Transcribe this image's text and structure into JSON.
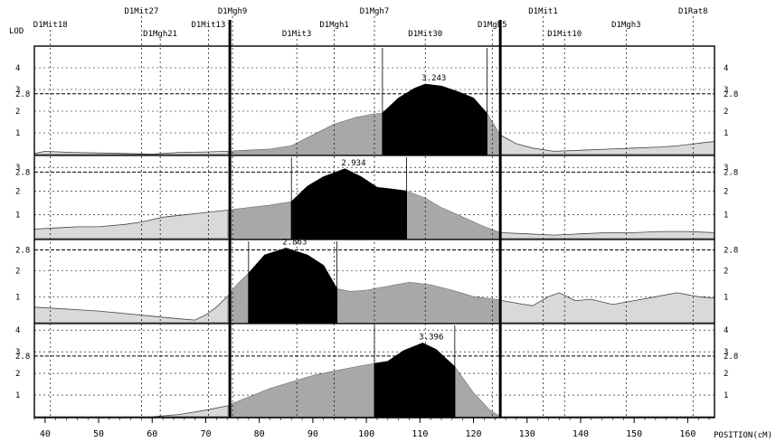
{
  "chart_data": {
    "type": "area",
    "title": "",
    "ylabel": "LOD",
    "xlabel": "POSITION(cM)",
    "x_range": [
      38,
      165
    ],
    "x_ticks": [
      40,
      50,
      60,
      70,
      80,
      90,
      100,
      110,
      120,
      130,
      140,
      150,
      160
    ],
    "y_ticks": [
      1,
      2,
      3,
      4
    ],
    "threshold": 2.8,
    "threshold_label": "2.8",
    "bold_markers": [
      74.5,
      125
    ],
    "markers": [
      {
        "name": "D1Mit18",
        "pos": 41,
        "row": 1
      },
      {
        "name": "D1Mit27",
        "pos": 58,
        "row": 0
      },
      {
        "name": "D1Mgh21",
        "pos": 61.5,
        "row": 2
      },
      {
        "name": "D1Mit13",
        "pos": 70.5,
        "row": 1
      },
      {
        "name": "D1Mgh9",
        "pos": 75,
        "row": 0
      },
      {
        "name": "D1Mit3",
        "pos": 87,
        "row": 2
      },
      {
        "name": "D1Mgh1",
        "pos": 94,
        "row": 1
      },
      {
        "name": "D1Mgh7",
        "pos": 101.5,
        "row": 0
      },
      {
        "name": "D1Mit30",
        "pos": 111,
        "row": 2
      },
      {
        "name": "D1Mgh5",
        "pos": 123.5,
        "row": 1
      },
      {
        "name": "D1Mit1",
        "pos": 133,
        "row": 0
      },
      {
        "name": "D1Mit10",
        "pos": 137,
        "row": 2
      },
      {
        "name": "D1Mgh3",
        "pos": 148.5,
        "row": 1
      },
      {
        "name": "D1Rat8",
        "pos": 161,
        "row": 0
      }
    ],
    "panels": [
      {
        "peak_label": "3.243",
        "peak_x": 111,
        "peak_y": 3.243,
        "ymax": 5,
        "y_ticks": [
          1,
          2,
          3,
          4
        ],
        "ci": [
          103,
          122.5
        ],
        "shade": [
          74,
          125
        ],
        "curve": [
          [
            38,
            0.05
          ],
          [
            40,
            0.15
          ],
          [
            45,
            0.1
          ],
          [
            55,
            0.05
          ],
          [
            60,
            0.02
          ],
          [
            65,
            0.1
          ],
          [
            70,
            0.12
          ],
          [
            74,
            0.15
          ],
          [
            78,
            0.2
          ],
          [
            82,
            0.25
          ],
          [
            86,
            0.4
          ],
          [
            90,
            0.9
          ],
          [
            94,
            1.4
          ],
          [
            98,
            1.7
          ],
          [
            101,
            1.85
          ],
          [
            103,
            1.9
          ],
          [
            106,
            2.6
          ],
          [
            109,
            3.05
          ],
          [
            111,
            3.243
          ],
          [
            114,
            3.15
          ],
          [
            117,
            2.9
          ],
          [
            120,
            2.6
          ],
          [
            122.5,
            1.9
          ],
          [
            125,
            0.9
          ],
          [
            128,
            0.5
          ],
          [
            131,
            0.3
          ],
          [
            135,
            0.15
          ],
          [
            140,
            0.2
          ],
          [
            145,
            0.25
          ],
          [
            150,
            0.3
          ],
          [
            155,
            0.35
          ],
          [
            158,
            0.4
          ],
          [
            163,
            0.55
          ],
          [
            165,
            0.6
          ]
        ]
      },
      {
        "peak_label": "2.934",
        "peak_x": 96,
        "peak_y": 2.934,
        "ymax": 3.5,
        "y_ticks": [
          1,
          2,
          3
        ],
        "ci": [
          86,
          107.5
        ],
        "shade": [
          74,
          125
        ],
        "curve": [
          [
            38,
            0.4
          ],
          [
            42,
            0.45
          ],
          [
            46,
            0.5
          ],
          [
            50,
            0.5
          ],
          [
            55,
            0.6
          ],
          [
            58,
            0.7
          ],
          [
            62,
            0.9
          ],
          [
            66,
            1.0
          ],
          [
            70,
            1.1
          ],
          [
            74,
            1.2
          ],
          [
            78,
            1.3
          ],
          [
            82,
            1.4
          ],
          [
            86,
            1.55
          ],
          [
            89,
            2.2
          ],
          [
            92,
            2.6
          ],
          [
            96,
            2.934
          ],
          [
            99,
            2.6
          ],
          [
            102,
            2.15
          ],
          [
            104,
            2.1
          ],
          [
            107.5,
            2.0
          ],
          [
            111,
            1.7
          ],
          [
            114,
            1.3
          ],
          [
            118,
            0.9
          ],
          [
            122,
            0.5
          ],
          [
            125,
            0.25
          ],
          [
            130,
            0.2
          ],
          [
            135,
            0.15
          ],
          [
            140,
            0.2
          ],
          [
            145,
            0.25
          ],
          [
            150,
            0.25
          ],
          [
            155,
            0.3
          ],
          [
            160,
            0.3
          ],
          [
            165,
            0.25
          ]
        ]
      },
      {
        "peak_label": "2.863",
        "peak_x": 85,
        "peak_y": 2.863,
        "ymax": 3.2,
        "y_ticks": [
          1,
          2
        ],
        "ci": [
          78,
          94.5
        ],
        "shade": [
          74,
          125
        ],
        "curve": [
          [
            38,
            0.6
          ],
          [
            42,
            0.55
          ],
          [
            46,
            0.5
          ],
          [
            50,
            0.45
          ],
          [
            55,
            0.35
          ],
          [
            60,
            0.25
          ],
          [
            65,
            0.15
          ],
          [
            68,
            0.1
          ],
          [
            70,
            0.3
          ],
          [
            72,
            0.6
          ],
          [
            74,
            1.0
          ],
          [
            76,
            1.5
          ],
          [
            78,
            1.9
          ],
          [
            81,
            2.6
          ],
          [
            85,
            2.863
          ],
          [
            89,
            2.6
          ],
          [
            92,
            2.2
          ],
          [
            94.5,
            1.3
          ],
          [
            97,
            1.2
          ],
          [
            100,
            1.25
          ],
          [
            104,
            1.4
          ],
          [
            108,
            1.55
          ],
          [
            112,
            1.45
          ],
          [
            116,
            1.25
          ],
          [
            120,
            1.0
          ],
          [
            124,
            0.9
          ],
          [
            128,
            0.75
          ],
          [
            131,
            0.65
          ],
          [
            134,
            1.0
          ],
          [
            136,
            1.15
          ],
          [
            139,
            0.85
          ],
          [
            142,
            0.9
          ],
          [
            146,
            0.7
          ],
          [
            150,
            0.85
          ],
          [
            154,
            1.0
          ],
          [
            158,
            1.15
          ],
          [
            162,
            1.0
          ],
          [
            165,
            0.95
          ]
        ]
      },
      {
        "peak_label": "3.396",
        "peak_x": 110.5,
        "peak_y": 3.396,
        "ymax": 4.3,
        "y_ticks": [
          1,
          2,
          3,
          4
        ],
        "ci": [
          101.5,
          116.5
        ],
        "shade": [
          74,
          125
        ],
        "curve": [
          [
            38,
            0
          ],
          [
            50,
            0
          ],
          [
            60,
            0
          ],
          [
            65,
            0.1
          ],
          [
            70,
            0.3
          ],
          [
            74,
            0.5
          ],
          [
            78,
            0.9
          ],
          [
            82,
            1.3
          ],
          [
            86,
            1.6
          ],
          [
            90,
            1.9
          ],
          [
            94,
            2.1
          ],
          [
            98,
            2.3
          ],
          [
            101.5,
            2.45
          ],
          [
            104,
            2.55
          ],
          [
            107,
            3.05
          ],
          [
            110.5,
            3.396
          ],
          [
            113,
            3.1
          ],
          [
            116.5,
            2.3
          ],
          [
            120,
            1.1
          ],
          [
            123,
            0.3
          ],
          [
            125,
            0
          ],
          [
            130,
            0
          ],
          [
            140,
            0
          ],
          [
            150,
            0
          ],
          [
            165,
            0
          ]
        ]
      }
    ]
  },
  "labels": {
    "lod": "LOD",
    "position": "POSITION(cM)"
  },
  "colors": {
    "shade": "#a8a8a8",
    "ci": "#000000",
    "background_curve": "#d9d9d9"
  }
}
